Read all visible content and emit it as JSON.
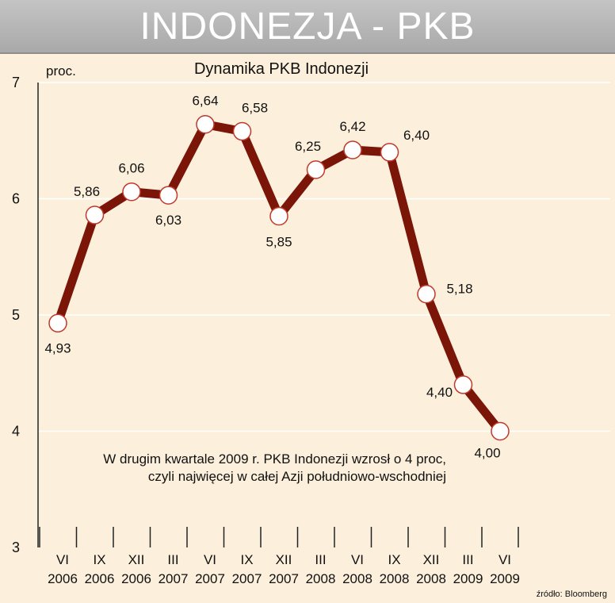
{
  "banner": {
    "title": "INDONEZJA - PKB"
  },
  "chart_data": {
    "type": "line",
    "title": "Dynamika PKB Indonezji",
    "ylabel": "proc.",
    "ylim": [
      3,
      7
    ],
    "yticks": [
      "3",
      "4",
      "5",
      "6",
      "7"
    ],
    "grid": true,
    "categories": [
      [
        "VI",
        "2006"
      ],
      [
        "IX",
        "2006"
      ],
      [
        "XII",
        "2006"
      ],
      [
        "III",
        "2007"
      ],
      [
        "VI",
        "2007"
      ],
      [
        "IX",
        "2007"
      ],
      [
        "XII",
        "2007"
      ],
      [
        "III",
        "2008"
      ],
      [
        "VI",
        "2008"
      ],
      [
        "IX",
        "2008"
      ],
      [
        "XII",
        "2008"
      ],
      [
        "III",
        "2009"
      ],
      [
        "VI",
        "2009"
      ]
    ],
    "series": [
      {
        "values": [
          4.93,
          5.86,
          6.06,
          6.03,
          6.64,
          6.58,
          5.85,
          6.25,
          6.42,
          6.4,
          5.18,
          4.4,
          4.0
        ],
        "labels": [
          "4,93",
          "5,86",
          "6,06",
          "6,03",
          "6,64",
          "6,58",
          "5,85",
          "6,25",
          "6,42",
          "6,40",
          "5,18",
          "4,40",
          "4,00"
        ]
      }
    ],
    "annotation": [
      "W drugim kwartale 2009 r. PKB Indonezji wzrosł o 4 proc,",
      "czyli najwięcej w całej Azji południowo-wschodniej"
    ],
    "source": "źródło: Bloomberg",
    "colors": {
      "line": "#7a1508",
      "marker_fill": "#ffffff",
      "marker_stroke": "#c0392b",
      "grid": "#ffffff",
      "background": "#fcf0dc"
    }
  }
}
